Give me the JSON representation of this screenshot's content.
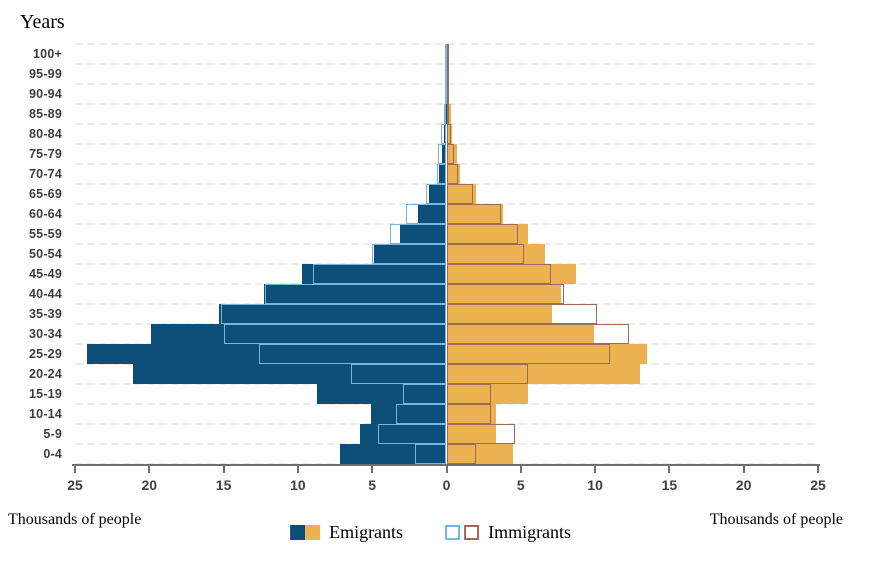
{
  "title": "Years",
  "x_axis": {
    "tick_labels": [
      "25",
      "20",
      "15",
      "10",
      "5",
      "0",
      "5",
      "10",
      "15",
      "20",
      "25"
    ],
    "unit_label_left": "Thousands of people",
    "unit_label_right": "Thousands of people"
  },
  "legend": {
    "emigrants_label": "Emigrants",
    "immigrants_label": "Immigrants"
  },
  "colors": {
    "emigrant_left_fill": "#0d4e78",
    "emigrant_right_fill": "#ecb252",
    "immigrant_left_outline": "#74b6de",
    "immigrant_right_outline": "#9c6a58",
    "axis_line": "#6e6e6e",
    "gridline": "#ebebeb",
    "tick_text": "#404040"
  },
  "chart_data": {
    "type": "bar",
    "subtype": "population_pyramid",
    "title": "Years",
    "xlabel": "Thousands of people",
    "ylabel": "Years (age groups)",
    "unit": "thousands of people",
    "xlim": [
      -25,
      25
    ],
    "grid": "horizontal-dashed",
    "legend_position": "bottom-center",
    "categories": [
      "100+",
      "95-99",
      "90-94",
      "85-89",
      "80-84",
      "75-79",
      "70-74",
      "65-69",
      "60-64",
      "55-59",
      "50-54",
      "45-49",
      "40-44",
      "35-39",
      "30-34",
      "25-29",
      "20-24",
      "15-19",
      "10-14",
      "5-9",
      "0-4"
    ],
    "series": [
      {
        "name": "Emigrants (left side)",
        "side": "left",
        "style": "filled",
        "color": "#0d4e78",
        "values": [
          0,
          0,
          0.05,
          0.1,
          0.15,
          0.3,
          0.5,
          1.2,
          1.9,
          3.1,
          4.9,
          9.7,
          12.3,
          15.3,
          19.9,
          24.2,
          21.1,
          8.7,
          5.1,
          5.8,
          7.2
        ]
      },
      {
        "name": "Immigrants (left side)",
        "side": "left",
        "style": "outline",
        "color": "#74b6de",
        "values": [
          0.1,
          0.1,
          0.1,
          0.2,
          0.4,
          0.55,
          0.65,
          1.4,
          2.7,
          3.8,
          5.0,
          9.0,
          12.2,
          15.2,
          15.0,
          12.6,
          6.4,
          2.9,
          3.4,
          4.6,
          2.1
        ]
      },
      {
        "name": "Emigrants (right side)",
        "side": "right",
        "style": "filled",
        "color": "#ecb252",
        "values": [
          0,
          0,
          0.1,
          0.3,
          0.4,
          0.7,
          0.9,
          2.0,
          3.8,
          5.5,
          6.6,
          8.7,
          7.7,
          7.1,
          9.9,
          13.5,
          13.0,
          5.5,
          3.3,
          3.3,
          4.5
        ]
      },
      {
        "name": "Immigrants (right side)",
        "side": "right",
        "style": "outline",
        "color": "#9c6a58",
        "values": [
          0.05,
          0.05,
          0.1,
          0.2,
          0.3,
          0.5,
          0.8,
          1.8,
          3.7,
          4.8,
          5.2,
          7.0,
          7.9,
          10.1,
          12.3,
          11.0,
          5.5,
          3.0,
          3.0,
          4.6,
          2.0
        ]
      }
    ]
  }
}
